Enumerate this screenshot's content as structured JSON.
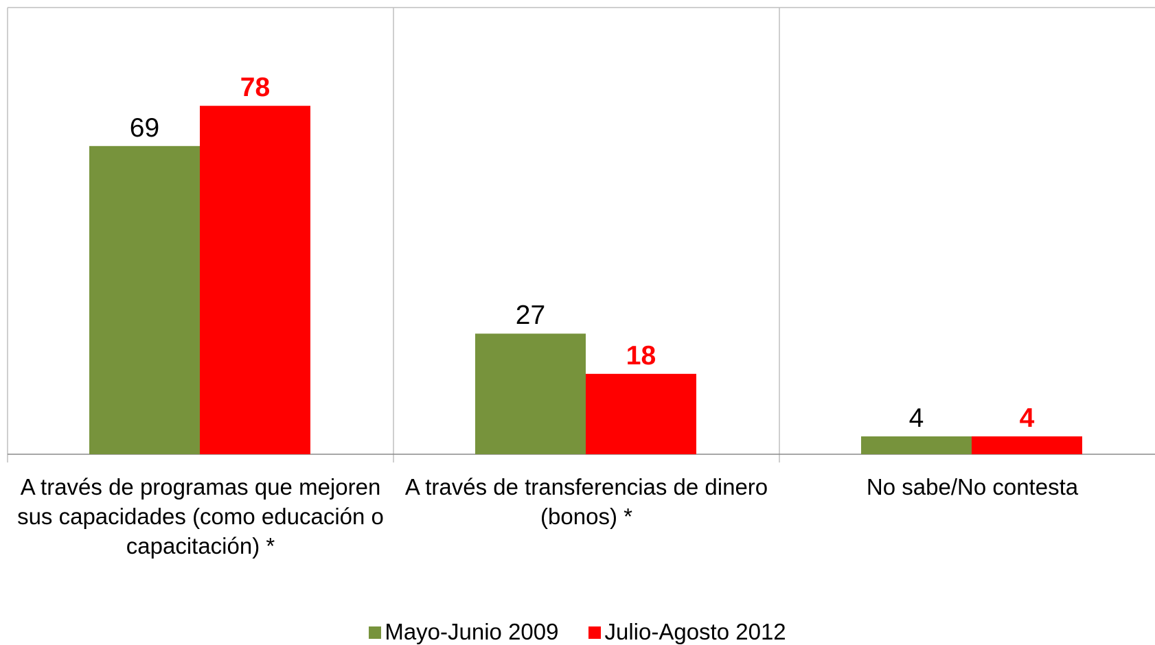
{
  "chart_data": {
    "type": "bar",
    "categories": [
      "A través de programas que mejoren sus capacidades (como educación o capacitación) *",
      "A través de transferencias de dinero (bonos) *",
      "No sabe/No contesta"
    ],
    "series": [
      {
        "name": "Mayo-Junio 2009",
        "color": "#77933c",
        "label_color": "#000000",
        "label_bold": false,
        "values": [
          69,
          27,
          4
        ]
      },
      {
        "name": "Julio-Agosto 2012",
        "color": "#ff0000",
        "label_color": "#ff0000",
        "label_bold": true,
        "values": [
          78,
          18,
          4
        ]
      }
    ],
    "ylim": [
      0,
      100
    ],
    "legend": "bottom"
  }
}
